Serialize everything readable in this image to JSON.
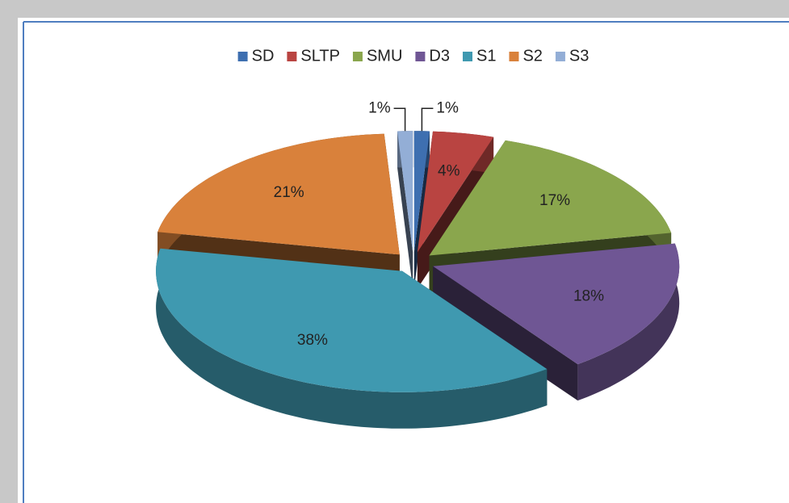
{
  "chart_data": {
    "type": "pie",
    "categories": [
      "SD",
      "SLTP",
      "SMU",
      "D3",
      "S1",
      "S2",
      "S3"
    ],
    "values": [
      1,
      4,
      17,
      18,
      38,
      21,
      1
    ],
    "value_labels": [
      "1%",
      "4%",
      "17%",
      "18%",
      "38%",
      "21%",
      "1%"
    ],
    "colors": [
      "#3e6fb0",
      "#b94441",
      "#8aa64d",
      "#6f5694",
      "#3f99b0",
      "#d9813b",
      "#93aed6"
    ],
    "legend": "top",
    "exploded": true,
    "3d": true
  }
}
